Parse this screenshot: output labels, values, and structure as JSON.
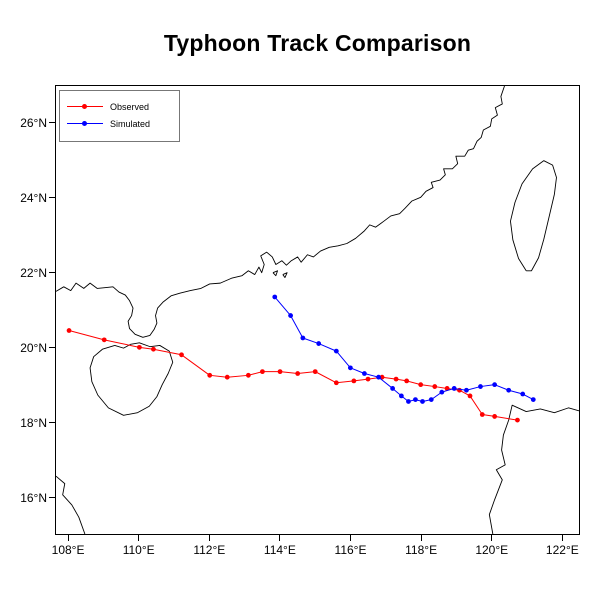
{
  "chart_data": {
    "type": "line",
    "title": "Typhoon Track Comparison",
    "xlabel": "",
    "ylabel": "",
    "grid": false,
    "xlim": [
      107.63,
      122.5
    ],
    "ylim": [
      15.0,
      27.0
    ],
    "legend_position": "top-left",
    "x_ticks": [
      {
        "value": 108,
        "label": "108°E"
      },
      {
        "value": 110,
        "label": "110°E"
      },
      {
        "value": 112,
        "label": "112°E"
      },
      {
        "value": 114,
        "label": "114°E"
      },
      {
        "value": 116,
        "label": "116°E"
      },
      {
        "value": 118,
        "label": "118°E"
      },
      {
        "value": 120,
        "label": "120°E"
      },
      {
        "value": 122,
        "label": "122°E"
      }
    ],
    "y_ticks": [
      {
        "value": 16,
        "label": "16°N"
      },
      {
        "value": 18,
        "label": "18°N"
      },
      {
        "value": 20,
        "label": "20°N"
      },
      {
        "value": 22,
        "label": "22°N"
      },
      {
        "value": 24,
        "label": "24°N"
      },
      {
        "value": 26,
        "label": "26°N"
      }
    ],
    "series": [
      {
        "name": "Observed",
        "color": "#ff0000",
        "marker": "circle",
        "points": [
          [
            108.0,
            20.45
          ],
          [
            109.0,
            20.2
          ],
          [
            110.0,
            20.0
          ],
          [
            110.4,
            19.95
          ],
          [
            111.2,
            19.8
          ],
          [
            112.0,
            19.25
          ],
          [
            112.5,
            19.2
          ],
          [
            113.1,
            19.25
          ],
          [
            113.5,
            19.35
          ],
          [
            114.0,
            19.35
          ],
          [
            114.5,
            19.3
          ],
          [
            115.0,
            19.35
          ],
          [
            115.6,
            19.05
          ],
          [
            116.1,
            19.1
          ],
          [
            116.5,
            19.15
          ],
          [
            116.9,
            19.2
          ],
          [
            117.3,
            19.15
          ],
          [
            117.6,
            19.1
          ],
          [
            118.0,
            19.0
          ],
          [
            118.4,
            18.95
          ],
          [
            118.75,
            18.9
          ],
          [
            119.1,
            18.85
          ],
          [
            119.4,
            18.7
          ],
          [
            119.75,
            18.2
          ],
          [
            120.1,
            18.15
          ],
          [
            120.75,
            18.05
          ]
        ]
      },
      {
        "name": "Simulated",
        "color": "#0000ff",
        "marker": "circle",
        "points": [
          [
            113.85,
            21.35
          ],
          [
            114.3,
            20.85
          ],
          [
            114.65,
            20.25
          ],
          [
            115.1,
            20.1
          ],
          [
            115.6,
            19.9
          ],
          [
            116.0,
            19.45
          ],
          [
            116.4,
            19.3
          ],
          [
            116.8,
            19.2
          ],
          [
            117.2,
            18.9
          ],
          [
            117.45,
            18.7
          ],
          [
            117.65,
            18.55
          ],
          [
            117.85,
            18.6
          ],
          [
            118.05,
            18.55
          ],
          [
            118.3,
            18.6
          ],
          [
            118.6,
            18.8
          ],
          [
            118.95,
            18.9
          ],
          [
            119.3,
            18.85
          ],
          [
            119.7,
            18.95
          ],
          [
            120.1,
            19.0
          ],
          [
            120.5,
            18.85
          ],
          [
            120.9,
            18.75
          ],
          [
            121.2,
            18.6
          ]
        ]
      }
    ],
    "map": {
      "outline_color": "#000000",
      "coastlines": [
        [
          [
            107.63,
            21.5
          ],
          [
            107.85,
            21.62
          ],
          [
            108.05,
            21.52
          ],
          [
            108.2,
            21.72
          ],
          [
            108.42,
            21.58
          ],
          [
            108.6,
            21.72
          ],
          [
            108.8,
            21.58
          ],
          [
            109.05,
            21.6
          ],
          [
            109.25,
            21.62
          ],
          [
            109.42,
            21.48
          ],
          [
            109.6,
            21.4
          ],
          [
            109.72,
            21.25
          ],
          [
            109.82,
            21.05
          ],
          [
            109.78,
            20.85
          ],
          [
            109.68,
            20.7
          ],
          [
            109.72,
            20.5
          ],
          [
            109.88,
            20.35
          ],
          [
            110.1,
            20.27
          ],
          [
            110.3,
            20.32
          ],
          [
            110.42,
            20.48
          ],
          [
            110.5,
            20.65
          ],
          [
            110.46,
            20.85
          ],
          [
            110.52,
            21.05
          ],
          [
            110.68,
            21.22
          ],
          [
            110.9,
            21.38
          ],
          [
            111.15,
            21.45
          ],
          [
            111.45,
            21.52
          ],
          [
            111.75,
            21.58
          ],
          [
            112.0,
            21.7
          ],
          [
            112.3,
            21.72
          ],
          [
            112.62,
            21.85
          ],
          [
            112.92,
            21.92
          ],
          [
            113.1,
            22.05
          ],
          [
            113.28,
            21.95
          ],
          [
            113.4,
            22.15
          ],
          [
            113.48,
            22.0
          ],
          [
            113.55,
            22.22
          ],
          [
            113.45,
            22.45
          ],
          [
            113.62,
            22.55
          ],
          [
            113.78,
            22.42
          ],
          [
            113.88,
            22.22
          ],
          [
            114.05,
            22.32
          ],
          [
            114.18,
            22.2
          ],
          [
            114.32,
            22.32
          ],
          [
            114.5,
            22.42
          ],
          [
            114.6,
            22.28
          ],
          [
            114.78,
            22.48
          ],
          [
            114.95,
            22.42
          ],
          [
            115.15,
            22.58
          ],
          [
            115.4,
            22.68
          ],
          [
            115.65,
            22.72
          ],
          [
            115.9,
            22.78
          ],
          [
            116.15,
            22.92
          ],
          [
            116.4,
            23.12
          ],
          [
            116.55,
            23.28
          ],
          [
            116.72,
            23.22
          ],
          [
            116.95,
            23.38
          ],
          [
            117.15,
            23.52
          ],
          [
            117.4,
            23.58
          ],
          [
            117.55,
            23.72
          ],
          [
            117.75,
            23.92
          ],
          [
            118.0,
            24.02
          ],
          [
            118.15,
            24.18
          ],
          [
            118.35,
            24.28
          ],
          [
            118.3,
            24.42
          ],
          [
            118.55,
            24.48
          ],
          [
            118.7,
            24.62
          ],
          [
            118.65,
            24.78
          ],
          [
            118.9,
            24.78
          ],
          [
            119.05,
            24.92
          ],
          [
            119.0,
            25.12
          ],
          [
            119.25,
            25.12
          ],
          [
            119.35,
            25.28
          ],
          [
            119.5,
            25.32
          ],
          [
            119.6,
            25.52
          ],
          [
            119.72,
            25.62
          ],
          [
            119.78,
            25.82
          ],
          [
            119.98,
            25.92
          ],
          [
            120.02,
            26.12
          ],
          [
            120.18,
            26.22
          ],
          [
            120.12,
            26.42
          ],
          [
            120.32,
            26.52
          ],
          [
            120.28,
            26.72
          ],
          [
            120.38,
            27.0
          ]
        ],
        [
          [
            109.3,
            20.05
          ],
          [
            109.55,
            19.98
          ],
          [
            109.75,
            20.08
          ],
          [
            110.0,
            20.12
          ],
          [
            110.3,
            20.02
          ],
          [
            110.58,
            20.05
          ],
          [
            110.85,
            19.9
          ],
          [
            110.95,
            19.6
          ],
          [
            110.82,
            19.3
          ],
          [
            110.65,
            19.0
          ],
          [
            110.5,
            18.68
          ],
          [
            110.28,
            18.42
          ],
          [
            109.95,
            18.25
          ],
          [
            109.55,
            18.18
          ],
          [
            109.12,
            18.38
          ],
          [
            108.82,
            18.72
          ],
          [
            108.65,
            19.08
          ],
          [
            108.6,
            19.45
          ],
          [
            108.7,
            19.75
          ],
          [
            108.95,
            19.95
          ],
          [
            109.3,
            20.05
          ]
        ],
        [
          [
            121.0,
            22.05
          ],
          [
            120.78,
            22.38
          ],
          [
            120.62,
            22.88
          ],
          [
            120.55,
            23.38
          ],
          [
            120.68,
            23.88
          ],
          [
            120.88,
            24.38
          ],
          [
            121.18,
            24.78
          ],
          [
            121.5,
            25.0
          ],
          [
            121.75,
            24.88
          ],
          [
            121.86,
            24.55
          ],
          [
            121.8,
            24.1
          ],
          [
            121.65,
            23.5
          ],
          [
            121.5,
            22.9
          ],
          [
            121.35,
            22.4
          ],
          [
            121.15,
            22.05
          ],
          [
            121.0,
            22.05
          ]
        ],
        [
          [
            122.5,
            18.3
          ],
          [
            122.2,
            18.38
          ],
          [
            121.8,
            18.25
          ],
          [
            121.4,
            18.35
          ],
          [
            121.0,
            18.28
          ],
          [
            120.6,
            18.45
          ],
          [
            120.5,
            18.05
          ],
          [
            120.35,
            17.65
          ],
          [
            120.3,
            17.25
          ],
          [
            120.4,
            16.85
          ],
          [
            120.15,
            16.72
          ],
          [
            120.32,
            16.45
          ],
          [
            120.1,
            15.92
          ],
          [
            119.95,
            15.52
          ],
          [
            120.05,
            15.0
          ]
        ],
        [
          [
            107.63,
            16.55
          ],
          [
            107.88,
            16.35
          ],
          [
            107.82,
            16.05
          ],
          [
            108.08,
            15.78
          ],
          [
            108.28,
            15.45
          ],
          [
            108.45,
            15.0
          ]
        ],
        [
          [
            113.8,
            22.0
          ],
          [
            113.93,
            22.05
          ],
          [
            113.88,
            21.92
          ],
          [
            113.8,
            22.0
          ]
        ],
        [
          [
            114.08,
            21.95
          ],
          [
            114.2,
            22.0
          ],
          [
            114.14,
            21.87
          ],
          [
            114.08,
            21.95
          ]
        ]
      ]
    }
  }
}
